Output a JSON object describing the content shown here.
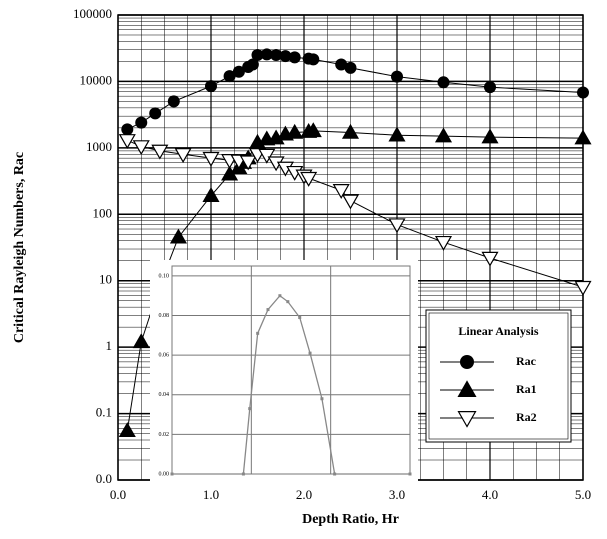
{
  "chart_data": [
    {
      "type": "line",
      "log_y": true,
      "grid": true,
      "color": "#000000",
      "xlabel": "Depth Ratio, Hr",
      "ylabel": "Critical Rayleigh Numbers, Rac",
      "xlim": [
        0,
        5
      ],
      "xticks": [
        {
          "value": 0,
          "label": "0.0"
        },
        {
          "value": 1,
          "label": "1.0"
        },
        {
          "value": 2,
          "label": "2.0"
        },
        {
          "value": 3,
          "label": "3.0"
        },
        {
          "value": 4,
          "label": "4.0"
        },
        {
          "value": 5,
          "label": "5.0"
        }
      ],
      "ylim": [
        0.01,
        100000
      ],
      "yticks": [
        {
          "value": 0.01,
          "label": "0.0"
        },
        0.1,
        1,
        10,
        100,
        1000,
        10000,
        100000
      ],
      "legend_title": "Linear Analysis",
      "legend": "lower right",
      "series": [
        {
          "name": "Rac",
          "marker": "circle",
          "x": [
            0.1,
            0.25,
            0.4,
            0.6,
            1.0,
            1.2,
            1.3,
            1.4,
            1.45,
            1.5,
            1.6,
            1.7,
            1.8,
            1.9,
            2.05,
            2.1,
            2.4,
            2.5,
            3.0,
            3.5,
            4.0,
            5.0
          ],
          "values": [
            1900,
            2400,
            3300,
            5000,
            8500,
            12000,
            14000,
            16500,
            18000,
            25000,
            25500,
            25000,
            24000,
            23000,
            22000,
            21500,
            18000,
            16000,
            11800,
            9700,
            8200,
            6800
          ]
        },
        {
          "name": "Ra1",
          "marker": "triangle-up",
          "x": [
            0.1,
            0.25,
            0.45,
            0.65,
            1.0,
            1.2,
            1.3,
            1.35,
            1.4,
            1.5,
            1.6,
            1.7,
            1.8,
            1.9,
            2.05,
            2.1,
            2.5,
            3.0,
            3.5,
            4.0,
            5.0
          ],
          "values": [
            0.055,
            1.2,
            8.5,
            45,
            190,
            400,
            500,
            600,
            700,
            1200,
            1350,
            1400,
            1600,
            1700,
            1750,
            1800,
            1700,
            1550,
            1500,
            1450,
            1400
          ]
        },
        {
          "name": "Ra2",
          "marker": "triangle-down",
          "x": [
            0.1,
            0.25,
            0.45,
            0.7,
            1.0,
            1.2,
            1.3,
            1.4,
            1.5,
            1.6,
            1.7,
            1.8,
            1.9,
            2.0,
            2.05,
            2.4,
            2.5,
            3.0,
            3.5,
            4.0,
            5.0
          ],
          "values": [
            1300,
            1050,
            900,
            800,
            700,
            650,
            640,
            620,
            800,
            780,
            600,
            500,
            430,
            380,
            350,
            230,
            160,
            70,
            38,
            22,
            8
          ]
        }
      ]
    },
    {
      "type": "line",
      "color": "#888888",
      "x": [
        0.5,
        1.4,
        1.48,
        1.58,
        1.71,
        1.86,
        1.96,
        2.11,
        2.24,
        2.39,
        2.55,
        3.5
      ],
      "values": [
        0,
        0,
        0.033,
        0.071,
        0.083,
        0.09,
        0.087,
        0.079,
        0.061,
        0.038,
        0,
        0
      ],
      "xlim": [
        0.5,
        3.5
      ],
      "ylim": [
        0,
        0.105
      ],
      "yticks": [
        {
          "value": 0,
          "label": "0.00"
        },
        {
          "value": 0.02,
          "label": "0.02"
        },
        {
          "value": 0.04,
          "label": "0.04"
        },
        {
          "value": 0.06,
          "label": "0.06"
        },
        {
          "value": 0.08,
          "label": "0.08"
        },
        {
          "value": 0.1,
          "label": "0.10"
        }
      ]
    }
  ]
}
